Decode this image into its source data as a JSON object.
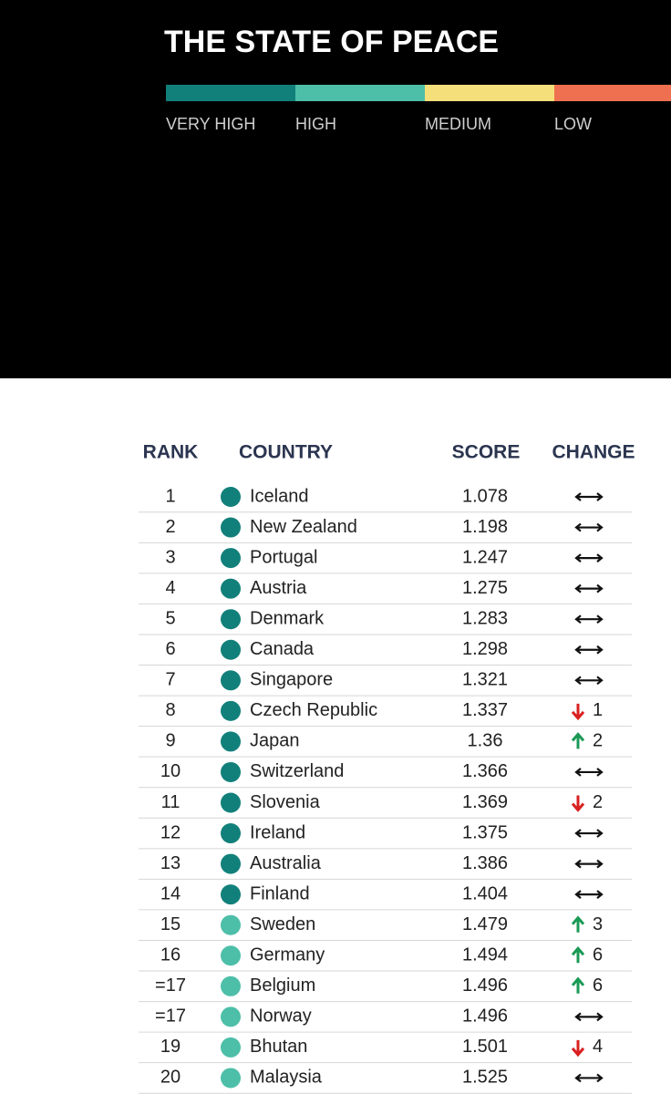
{
  "header": {
    "title": "THE STATE OF PEACE",
    "legend": [
      {
        "label": "VERY HIGH",
        "color": "#12807a"
      },
      {
        "label": "HIGH",
        "color": "#4dbfa8"
      },
      {
        "label": "MEDIUM",
        "color": "#f5df7a"
      },
      {
        "label": "LOW",
        "color": "#ef7050"
      }
    ]
  },
  "table": {
    "columns": [
      "RANK",
      "COUNTRY",
      "SCORE",
      "CHANGE"
    ],
    "rows": [
      {
        "rank": 1,
        "country": "Iceland",
        "score": 1.078,
        "color": "#12807a",
        "change": null
      },
      {
        "rank": 2,
        "country": "New Zealand",
        "score": 1.198,
        "color": "#12807a",
        "change": null
      },
      {
        "rank": 3,
        "country": "Portugal",
        "score": 1.247,
        "color": "#12807a",
        "change": null
      },
      {
        "rank": 4,
        "country": "Austria",
        "score": 1.275,
        "color": "#12807a",
        "change": null
      },
      {
        "rank": 5,
        "country": "Denmark",
        "score": 1.283,
        "color": "#12807a",
        "change": null
      },
      {
        "rank": 6,
        "country": "Canada",
        "score": 1.298,
        "color": "#12807a",
        "change": null
      },
      {
        "rank": 7,
        "country": "Singapore",
        "score": 1.321,
        "color": "#12807a",
        "change": null
      },
      {
        "rank": 8,
        "country": "Czech Republic",
        "score": 1.337,
        "color": "#12807a",
        "change": {
          "direction": "down",
          "places": 1
        }
      },
      {
        "rank": 9,
        "country": "Japan",
        "score": 1.36,
        "color": "#12807a",
        "change": {
          "direction": "up",
          "places": 2
        }
      },
      {
        "rank": 10,
        "country": "Switzerland",
        "score": 1.366,
        "color": "#12807a",
        "change": null
      },
      {
        "rank": 11,
        "country": "Slovenia",
        "score": 1.369,
        "color": "#12807a",
        "change": {
          "direction": "down",
          "places": 2
        }
      },
      {
        "rank": 12,
        "country": "Ireland",
        "score": 1.375,
        "color": "#12807a",
        "change": null
      },
      {
        "rank": 13,
        "country": "Australia",
        "score": 1.386,
        "color": "#12807a",
        "change": null
      },
      {
        "rank": 14,
        "country": "Finland",
        "score": 1.404,
        "color": "#12807a",
        "change": null
      },
      {
        "rank": 15,
        "country": "Sweden",
        "score": 1.479,
        "color": "#4dbfa8",
        "change": {
          "direction": "up",
          "places": 3
        }
      },
      {
        "rank": 16,
        "country": "Germany",
        "score": 1.494,
        "color": "#4dbfa8",
        "change": {
          "direction": "up",
          "places": 6
        }
      },
      {
        "rank": "=17",
        "country": "Belgium",
        "score": 1.496,
        "color": "#4dbfa8",
        "change": {
          "direction": "up",
          "places": 6
        }
      },
      {
        "rank": "=17",
        "country": "Norway",
        "score": 1.496,
        "color": "#4dbfa8",
        "change": null
      },
      {
        "rank": 19,
        "country": "Bhutan",
        "score": 1.501,
        "color": "#4dbfa8",
        "change": {
          "direction": "down",
          "places": 4
        }
      },
      {
        "rank": 20,
        "country": "Malaysia",
        "score": 1.525,
        "color": "#4dbfa8",
        "change": null
      }
    ]
  }
}
